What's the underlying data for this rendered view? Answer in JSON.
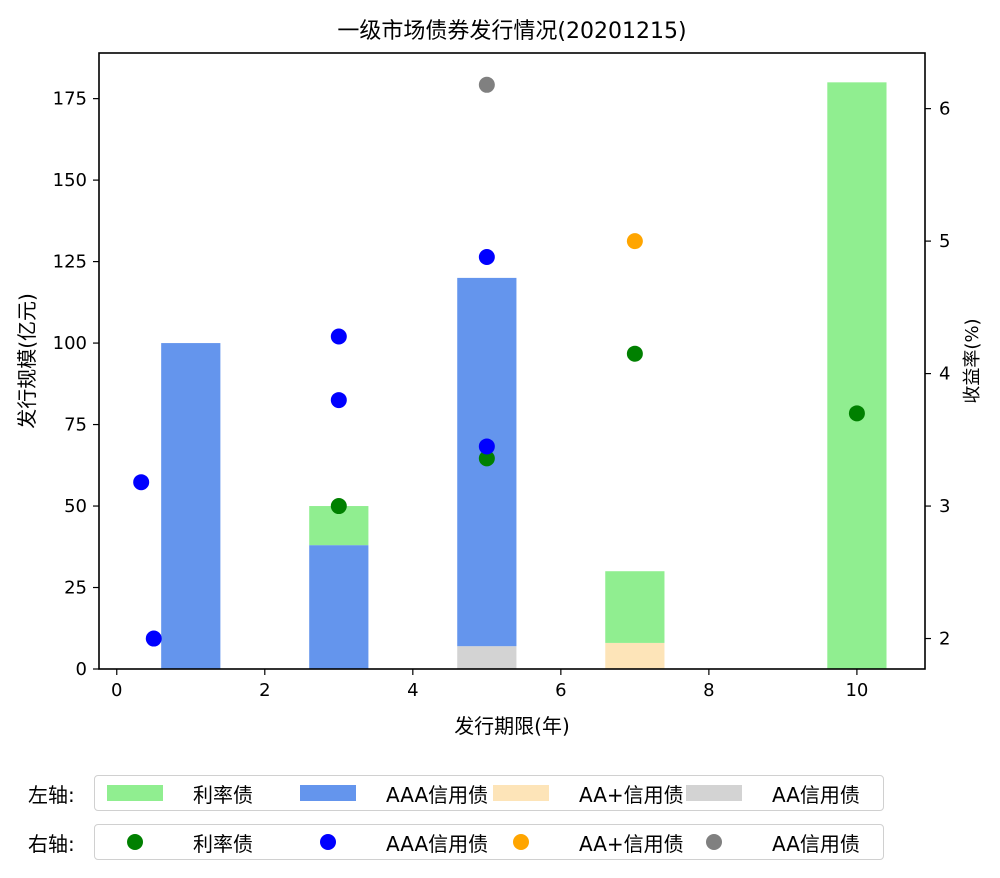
{
  "chart_data": {
    "type": "bar+scatter (dual axis)",
    "title": "一级市场债券发行情况(20201215)",
    "xlabel": "发行期限(年)",
    "ylabel_left": "发行规模(亿元)",
    "ylabel_right": "收益率(%)",
    "xlim": [
      -0.24,
      10.92
    ],
    "ylim_left": [
      0,
      189
    ],
    "ylim_right": [
      1.77,
      6.42
    ],
    "xticks": [
      0,
      2,
      4,
      6,
      8,
      10
    ],
    "yticks_left": [
      0,
      25,
      50,
      75,
      100,
      125,
      150,
      175
    ],
    "yticks_right": [
      2,
      3,
      4,
      5,
      6
    ],
    "grid": false,
    "bar_width": 0.8,
    "bars_stacked": {
      "x": [
        1,
        3,
        5,
        7,
        10
      ],
      "series": [
        {
          "name": "AA信用债",
          "color": "#d3d3d3",
          "values": [
            0,
            0,
            7,
            0,
            0
          ]
        },
        {
          "name": "AA+信用债",
          "color": "#fde4b8",
          "values": [
            0,
            0,
            0,
            8,
            0
          ]
        },
        {
          "name": "AAA信用债",
          "color": "#6495ed",
          "values": [
            100,
            38,
            113,
            0,
            0
          ]
        },
        {
          "name": "利率债",
          "color": "#90ee90",
          "values": [
            0,
            12,
            0,
            22,
            180
          ]
        }
      ]
    },
    "scatter_right_axis": [
      {
        "name": "利率债",
        "color": "#008000",
        "points": [
          [
            3,
            3.0
          ],
          [
            5,
            3.36
          ],
          [
            7,
            4.15
          ],
          [
            10,
            3.7
          ]
        ]
      },
      {
        "name": "AAA信用债",
        "color": "#0000ff",
        "points": [
          [
            0.33,
            3.18
          ],
          [
            0.5,
            2.0
          ],
          [
            3,
            4.28
          ],
          [
            3,
            3.8
          ],
          [
            5,
            4.88
          ],
          [
            5,
            3.45
          ]
        ]
      },
      {
        "name": "AA+信用债",
        "color": "#ffa500",
        "points": [
          [
            7,
            5.0
          ]
        ]
      },
      {
        "name": "AA信用债",
        "color": "#808080",
        "points": [
          [
            5,
            6.18
          ]
        ]
      }
    ]
  },
  "legend": {
    "left_axis": {
      "prefix": "左轴:",
      "items": [
        {
          "label": "利率债",
          "color": "#90ee90"
        },
        {
          "label": "AAA信用债",
          "color": "#6495ed"
        },
        {
          "label": "AA+信用债",
          "color": "#fde4b8"
        },
        {
          "label": "AA信用债",
          "color": "#d3d3d3"
        }
      ]
    },
    "right_axis": {
      "prefix": "右轴:",
      "items": [
        {
          "label": "利率债",
          "color": "#008000"
        },
        {
          "label": "AAA信用债",
          "color": "#0000ff"
        },
        {
          "label": "AA+信用债",
          "color": "#ffa500"
        },
        {
          "label": "AA信用债",
          "color": "#808080"
        }
      ]
    }
  }
}
